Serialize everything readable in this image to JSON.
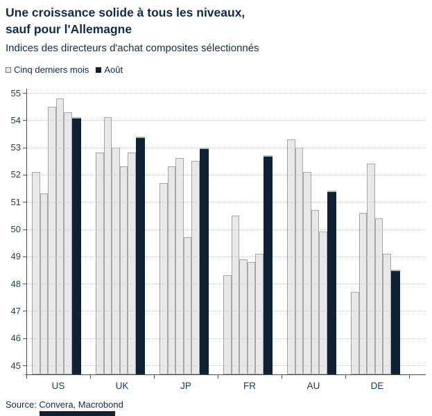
{
  "header": {
    "title_line1": "Une croissance solide à tous les niveaux,",
    "title_line2": "sauf pour l'Allemagne",
    "subtitle": "Indices des directeurs d'achat composites sélectionnés"
  },
  "legend": {
    "items": [
      {
        "label": "Cinq derniers mois",
        "swatch": "outlined-gray-square"
      },
      {
        "label": "Août",
        "swatch": "solid-navy-square"
      }
    ]
  },
  "footer": {
    "source": "Source: Convera, Macrobond"
  },
  "colors": {
    "navy_bar": "#0e2234",
    "title_text": "#0f2b4d",
    "axis_text": "#1d3c64",
    "gray_bar_fill": "#e8e8e8",
    "gray_bar_border": "#a6a6a6",
    "gridline": "#c6c6c6"
  },
  "chart_data": {
    "type": "bar",
    "title": "Une croissance solide à tous les niveaux, sauf pour l'Allemagne",
    "subtitle": "Indices des directeurs d'achat composites sélectionnés",
    "categories": [
      "US",
      "UK",
      "JP",
      "FR",
      "AU",
      "DE"
    ],
    "series": [
      {
        "name": "Cinq derniers mois",
        "values": [
          [
            52.1,
            51.3,
            54.5,
            54.8,
            54.3
          ],
          [
            52.8,
            54.1,
            53.0,
            52.3,
            52.8
          ],
          [
            51.7,
            52.3,
            52.6,
            49.7,
            52.5
          ],
          [
            48.3,
            50.5,
            48.9,
            48.8,
            49.1
          ],
          [
            53.3,
            53.0,
            52.1,
            50.7,
            49.9
          ],
          [
            47.7,
            50.6,
            52.4,
            50.4,
            49.1
          ]
        ]
      },
      {
        "name": "Août",
        "values": [
          54.1,
          53.4,
          53.0,
          52.7,
          51.4,
          48.5
        ]
      }
    ],
    "yticks": [
      45,
      46,
      47,
      48,
      49,
      50,
      51,
      52,
      53,
      54,
      55
    ],
    "ylim": [
      44.67,
      55.4
    ],
    "grid": "horizontal-dotted",
    "legend_position": "top-left",
    "source": "Source: Convera, Macrobond"
  }
}
